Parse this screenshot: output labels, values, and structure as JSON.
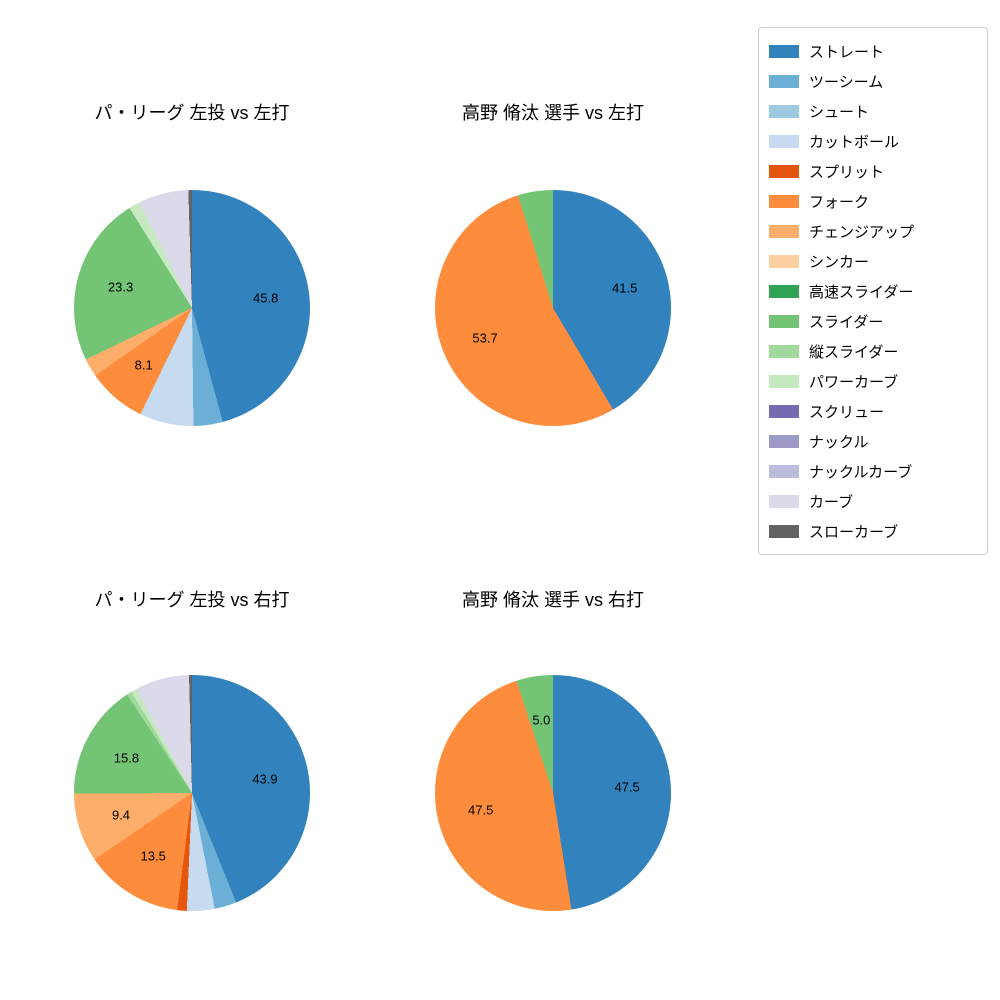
{
  "figure": {
    "background": "#ffffff"
  },
  "legend": {
    "items": [
      {
        "label": "ストレート",
        "color": "#3182bd"
      },
      {
        "label": "ツーシーム",
        "color": "#6baed6"
      },
      {
        "label": "シュート",
        "color": "#9ecae1"
      },
      {
        "label": "カットボール",
        "color": "#c6dbef"
      },
      {
        "label": "スプリット",
        "color": "#e6550d"
      },
      {
        "label": "フォーク",
        "color": "#fd8d3c"
      },
      {
        "label": "チェンジアップ",
        "color": "#fdae6b"
      },
      {
        "label": "シンカー",
        "color": "#fdd0a2"
      },
      {
        "label": "高速スライダー",
        "color": "#31a354"
      },
      {
        "label": "スライダー",
        "color": "#74c476"
      },
      {
        "label": "縦スライダー",
        "color": "#a1d99b"
      },
      {
        "label": "パワーカーブ",
        "color": "#c7e9c0"
      },
      {
        "label": "スクリュー",
        "color": "#756bb1"
      },
      {
        "label": "ナックル",
        "color": "#9e9ac8"
      },
      {
        "label": "ナックルカーブ",
        "color": "#bcbddc"
      },
      {
        "label": "カーブ",
        "color": "#dadaeb"
      },
      {
        "label": "スローカーブ",
        "color": "#636363"
      }
    ]
  },
  "chart_data": [
    {
      "type": "pie",
      "title": "パ・リーグ 左投 vs 左打",
      "start_angle_deg": 0,
      "direction": "clockwise",
      "slices": [
        {
          "name": "ストレート",
          "value": 45.8,
          "label": "45.8"
        },
        {
          "name": "ツーシーム",
          "value": 4.0,
          "label": ""
        },
        {
          "name": "カットボール",
          "value": 7.4,
          "label": ""
        },
        {
          "name": "フォーク",
          "value": 8.1,
          "label": "8.1"
        },
        {
          "name": "チェンジアップ",
          "value": 2.5,
          "label": ""
        },
        {
          "name": "スライダー",
          "value": 23.3,
          "label": "23.3"
        },
        {
          "name": "パワーカーブ",
          "value": 1.5,
          "label": ""
        },
        {
          "name": "カーブ",
          "value": 6.9,
          "label": ""
        },
        {
          "name": "スローカーブ",
          "value": 0.5,
          "label": ""
        }
      ]
    },
    {
      "type": "pie",
      "title": "高野 脩汰 選手 vs 左打",
      "start_angle_deg": 0,
      "direction": "clockwise",
      "slices": [
        {
          "name": "ストレート",
          "value": 41.5,
          "label": "41.5"
        },
        {
          "name": "フォーク",
          "value": 53.7,
          "label": "53.7"
        },
        {
          "name": "スライダー",
          "value": 4.8,
          "label": ""
        }
      ]
    },
    {
      "type": "pie",
      "title": "パ・リーグ 左投 vs 右打",
      "start_angle_deg": 0,
      "direction": "clockwise",
      "slices": [
        {
          "name": "ストレート",
          "value": 43.9,
          "label": "43.9"
        },
        {
          "name": "ツーシーム",
          "value": 3.0,
          "label": ""
        },
        {
          "name": "カットボール",
          "value": 3.8,
          "label": ""
        },
        {
          "name": "スプリット",
          "value": 1.3,
          "label": ""
        },
        {
          "name": "フォーク",
          "value": 13.5,
          "label": "13.5"
        },
        {
          "name": "チェンジアップ",
          "value": 9.4,
          "label": "9.4"
        },
        {
          "name": "スライダー",
          "value": 15.8,
          "label": "15.8"
        },
        {
          "name": "縦スライダー",
          "value": 0.7,
          "label": ""
        },
        {
          "name": "パワーカーブ",
          "value": 0.8,
          "label": ""
        },
        {
          "name": "カーブ",
          "value": 7.4,
          "label": ""
        },
        {
          "name": "スローカーブ",
          "value": 0.4,
          "label": ""
        }
      ]
    },
    {
      "type": "pie",
      "title": "高野 脩汰 選手 vs 右打",
      "start_angle_deg": 0,
      "direction": "clockwise",
      "slices": [
        {
          "name": "ストレート",
          "value": 47.5,
          "label": "47.5"
        },
        {
          "name": "フォーク",
          "value": 47.5,
          "label": "47.5"
        },
        {
          "name": "スライダー",
          "value": 5.0,
          "label": "5.0"
        }
      ]
    }
  ]
}
